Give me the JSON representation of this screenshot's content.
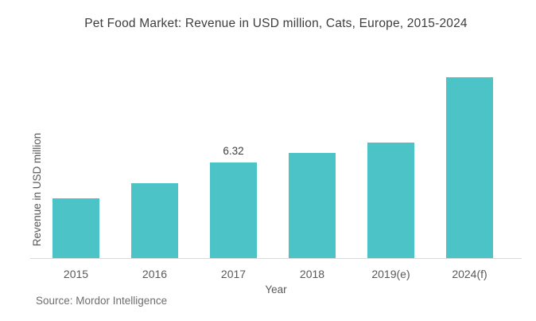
{
  "chart_data": {
    "type": "bar",
    "title": "Pet Food Market: Revenue in USD million, Cats, Europe, 2015-2024",
    "xlabel": "Year",
    "ylabel": "Revenue in USD million",
    "categories": [
      "2015",
      "2016",
      "2017",
      "2018",
      "2019(e)",
      "2024(f)"
    ],
    "values": [
      3.95,
      4.95,
      6.32,
      6.95,
      7.65,
      11.95
    ],
    "value_labels": [
      "",
      "",
      "6.32",
      "",
      "",
      ""
    ],
    "bar_color": "#4cc4c7",
    "ylim": [
      0,
      13
    ],
    "grid": false,
    "legend": false,
    "axis_line_color": "#d9d9d9"
  },
  "source": {
    "text": "Source: Mordor Intelligence"
  }
}
